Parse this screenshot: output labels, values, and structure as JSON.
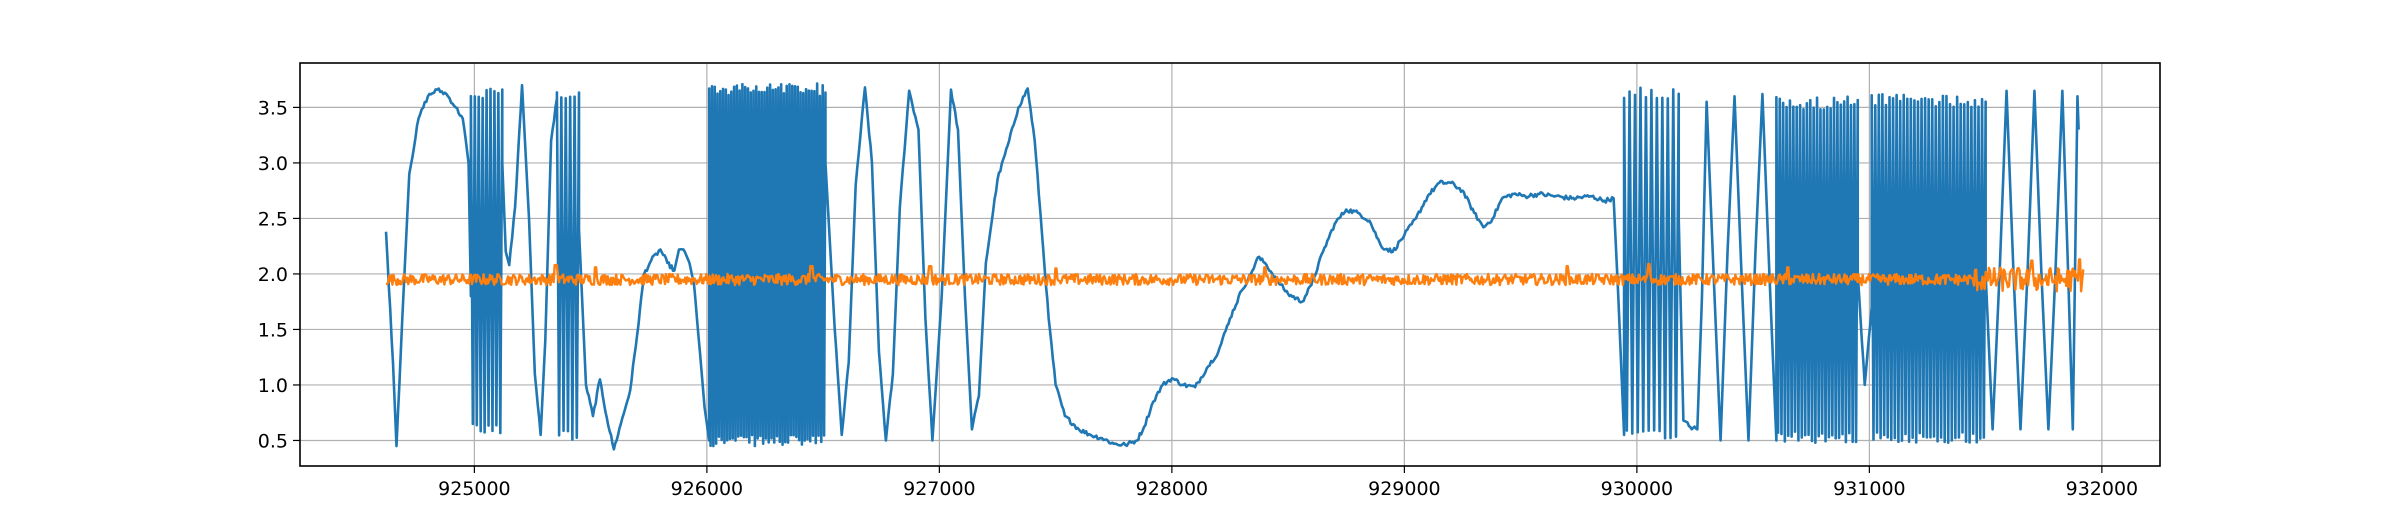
{
  "chart_data": {
    "type": "line",
    "title": "",
    "xlabel": "",
    "ylabel": "",
    "xlim": [
      924250,
      932250
    ],
    "ylim": [
      0.27,
      3.9
    ],
    "grid": true,
    "x_ticks": [
      925000,
      926000,
      927000,
      928000,
      929000,
      930000,
      931000,
      932000
    ],
    "x_tick_labels": [
      "925000",
      "926000",
      "927000",
      "928000",
      "929000",
      "930000",
      "931000",
      "932000"
    ],
    "y_ticks": [
      0.5,
      1.0,
      1.5,
      2.0,
      2.5,
      3.0,
      3.5
    ],
    "y_tick_labels": [
      "0.5",
      "1.0",
      "1.5",
      "2.0",
      "2.5",
      "3.0",
      "3.5"
    ],
    "colors": {
      "series_1": "#1f77b4",
      "series_2": "#ff7f0e",
      "grid": "#b0b0b0"
    },
    "series": [
      {
        "name": "",
        "color": "#1f77b4",
        "x_range": [
          924620,
          931900
        ],
        "segments": [
          {
            "kind": "pts",
            "points": [
              [
                924620,
                2.38
              ],
              [
                924650,
                1.2
              ],
              [
                924665,
                0.45
              ],
              [
                924690,
                1.6
              ],
              [
                924720,
                2.9
              ],
              [
                924760,
                3.4
              ],
              [
                924800,
                3.6
              ],
              [
                924840,
                3.66
              ],
              [
                924880,
                3.62
              ],
              [
                924920,
                3.5
              ],
              [
                924950,
                3.4
              ],
              [
                924975,
                3.0
              ],
              [
                924985,
                1.8
              ]
            ]
          },
          {
            "kind": "osc",
            "x0": 924985,
            "x1": 925120,
            "n": 8,
            "lo": 0.55,
            "hi": 3.68
          },
          {
            "kind": "pts",
            "points": [
              [
                925120,
                3.0
              ],
              [
                925135,
                2.2
              ],
              [
                925150,
                2.08
              ],
              [
                925175,
                2.6
              ],
              [
                925205,
                3.7
              ],
              [
                925235,
                2.5
              ],
              [
                925260,
                1.1
              ],
              [
                925285,
                0.55
              ],
              [
                925305,
                1.4
              ],
              [
                925330,
                3.2
              ],
              [
                925355,
                3.58
              ]
            ]
          },
          {
            "kind": "osc",
            "x0": 925355,
            "x1": 925450,
            "n": 5,
            "lo": 0.5,
            "hi": 3.68
          },
          {
            "kind": "pts",
            "points": [
              [
                925450,
                2.4
              ],
              [
                925480,
                1.0
              ],
              [
                925510,
                0.72
              ],
              [
                925540,
                1.05
              ],
              [
                925570,
                0.7
              ],
              [
                925600,
                0.42
              ],
              [
                925630,
                0.65
              ],
              [
                925670,
                0.95
              ],
              [
                925700,
                1.45
              ],
              [
                925730,
                2.0
              ],
              [
                925760,
                2.12
              ],
              [
                925800,
                2.22
              ],
              [
                925830,
                2.1
              ],
              [
                925860,
                2.03
              ],
              [
                925880,
                2.22
              ],
              [
                925905,
                2.2
              ],
              [
                925925,
                2.1
              ],
              [
                925945,
                1.9
              ],
              [
                925970,
                1.3
              ],
              [
                925990,
                0.8
              ],
              [
                926010,
                0.5
              ]
            ]
          },
          {
            "kind": "osc",
            "x0": 926010,
            "x1": 926510,
            "n": 42,
            "lo": 0.45,
            "hi": 3.72
          },
          {
            "kind": "pts",
            "points": [
              [
                926510,
                3.0
              ],
              [
                926550,
                1.5
              ],
              [
                926580,
                0.55
              ],
              [
                926610,
                1.2
              ],
              [
                926640,
                2.8
              ],
              [
                926680,
                3.68
              ],
              [
                926710,
                3.0
              ],
              [
                926740,
                1.3
              ],
              [
                926770,
                0.5
              ],
              [
                926800,
                1.1
              ],
              [
                926830,
                2.6
              ],
              [
                926870,
                3.65
              ],
              [
                926910,
                3.3
              ],
              [
                926940,
                1.6
              ],
              [
                926970,
                0.5
              ],
              [
                927010,
                1.8
              ],
              [
                927050,
                3.66
              ],
              [
                927080,
                3.3
              ],
              [
                927110,
                1.8
              ],
              [
                927140,
                0.6
              ],
              [
                927170,
                0.9
              ],
              [
                927200,
                2.1
              ],
              [
                927250,
                2.85
              ],
              [
                927300,
                3.2
              ],
              [
                927340,
                3.5
              ],
              [
                927380,
                3.67
              ],
              [
                927410,
                3.2
              ],
              [
                927440,
                2.4
              ],
              [
                927470,
                1.6
              ],
              [
                927500,
                1.0
              ],
              [
                927540,
                0.72
              ],
              [
                927600,
                0.6
              ],
              [
                927650,
                0.55
              ],
              [
                927700,
                0.52
              ],
              [
                927750,
                0.47
              ],
              [
                927800,
                0.46
              ],
              [
                927850,
                0.5
              ],
              [
                927880,
                0.62
              ],
              [
                927920,
                0.85
              ],
              [
                927960,
                1.0
              ],
              [
                928000,
                1.06
              ],
              [
                928050,
                1.0
              ],
              [
                928100,
                0.98
              ],
              [
                928150,
                1.15
              ],
              [
                928200,
                1.3
              ],
              [
                928250,
                1.6
              ],
              [
                928300,
                1.85
              ],
              [
                928340,
                2.0
              ],
              [
                928370,
                2.15
              ],
              [
                928400,
                2.1
              ],
              [
                928450,
                1.95
              ],
              [
                928500,
                1.82
              ],
              [
                928560,
                1.75
              ],
              [
                928600,
                1.9
              ],
              [
                928650,
                2.2
              ],
              [
                928700,
                2.45
              ],
              [
                928750,
                2.58
              ],
              [
                928800,
                2.55
              ],
              [
                928850,
                2.48
              ],
              [
                928900,
                2.25
              ],
              [
                928950,
                2.2
              ],
              [
                929000,
                2.35
              ],
              [
                929050,
                2.5
              ],
              [
                929100,
                2.7
              ],
              [
                929150,
                2.82
              ],
              [
                929200,
                2.82
              ],
              [
                929250,
                2.75
              ],
              [
                929300,
                2.55
              ],
              [
                929340,
                2.42
              ],
              [
                929380,
                2.5
              ],
              [
                929420,
                2.68
              ],
              [
                929470,
                2.72
              ],
              [
                929520,
                2.7
              ],
              [
                929580,
                2.72
              ],
              [
                929650,
                2.7
              ],
              [
                929720,
                2.68
              ],
              [
                929800,
                2.7
              ],
              [
                929860,
                2.66
              ],
              [
                929900,
                2.68
              ],
              [
                929920,
                1.8
              ],
              [
                929945,
                0.55
              ]
            ]
          },
          {
            "kind": "osc",
            "x0": 929945,
            "x1": 930180,
            "n": 10,
            "lo": 0.5,
            "hi": 3.68
          },
          {
            "kind": "pts",
            "points": [
              [
                930180,
                2.5
              ],
              [
                930200,
                0.68
              ],
              [
                930230,
                0.62
              ],
              [
                930260,
                0.6
              ],
              [
                930280,
                1.8
              ],
              [
                930300,
                3.55
              ],
              [
                930330,
                2.0
              ],
              [
                930360,
                0.5
              ],
              [
                930390,
                2.2
              ],
              [
                930420,
                3.6
              ],
              [
                930450,
                2.0
              ],
              [
                930480,
                0.5
              ],
              [
                930510,
                2.2
              ],
              [
                930540,
                3.62
              ],
              [
                930570,
                2.0
              ],
              [
                930600,
                0.5
              ]
            ]
          },
          {
            "kind": "osc",
            "x0": 930600,
            "x1": 930950,
            "n": 24,
            "lo": 0.48,
            "hi": 3.6
          },
          {
            "kind": "pts",
            "points": [
              [
                930950,
                2.0
              ],
              [
                930980,
                1.0
              ],
              [
                931010,
                1.7
              ]
            ]
          },
          {
            "kind": "osc",
            "x0": 931010,
            "x1": 931500,
            "n": 32,
            "lo": 0.48,
            "hi": 3.62
          },
          {
            "kind": "pts",
            "points": [
              [
                931500,
                2.0
              ],
              [
                931530,
                0.6
              ],
              [
                931560,
                2.0
              ],
              [
                931590,
                3.65
              ],
              [
                931620,
                2.0
              ],
              [
                931650,
                0.6
              ],
              [
                931680,
                2.0
              ],
              [
                931710,
                3.65
              ],
              [
                931740,
                2.0
              ],
              [
                931770,
                0.6
              ],
              [
                931800,
                2.0
              ],
              [
                931830,
                3.65
              ],
              [
                931855,
                2.0
              ],
              [
                931875,
                0.6
              ],
              [
                931895,
                3.6
              ],
              [
                931900,
                3.3
              ]
            ]
          }
        ]
      },
      {
        "name": "",
        "color": "#ff7f0e",
        "x_range": [
          924620,
          931920
        ],
        "baseline": 1.95,
        "noise_amplitude": 0.05,
        "tail_start": 931450,
        "tail_noise_amplitude": 0.11,
        "spikes": [
          [
            925350,
            2.08
          ],
          [
            925520,
            2.06
          ],
          [
            926450,
            2.07
          ],
          [
            926960,
            2.07
          ],
          [
            927500,
            2.05
          ],
          [
            928400,
            2.06
          ],
          [
            929700,
            2.07
          ],
          [
            930050,
            2.09
          ],
          [
            930650,
            2.06
          ],
          [
            931700,
            2.12
          ],
          [
            931905,
            2.13
          ]
        ]
      }
    ]
  }
}
